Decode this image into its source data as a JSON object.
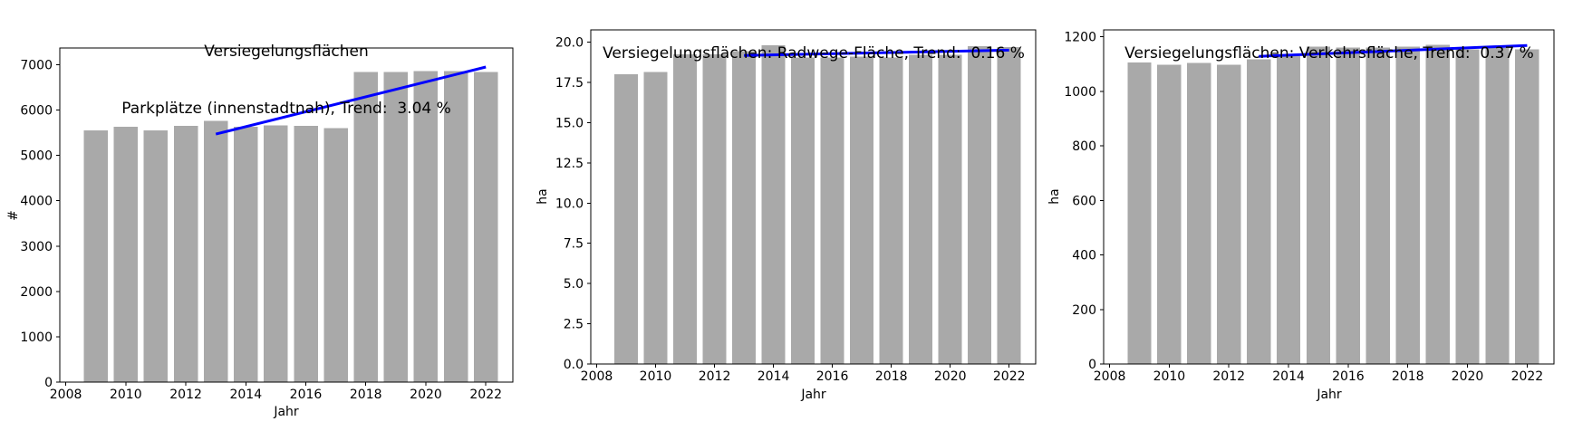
{
  "figure": {
    "background": "#ffffff",
    "bar_color": "#a9a9a9",
    "trend_color": "#0000ff",
    "axis_color": "#000000",
    "text_color": "#000000"
  },
  "chart_data": [
    {
      "type": "bar",
      "title_lines": [
        "Versiegelungsflächen",
        "Parkplätze (innenstadtnah), Trend:  3.04 %"
      ],
      "trend_value_label": "3.04 %",
      "xlabel": "Jahr",
      "ylabel": "#",
      "x": [
        2009,
        2010,
        2011,
        2012,
        2013,
        2014,
        2015,
        2016,
        2017,
        2018,
        2019,
        2020,
        2021,
        2022
      ],
      "values": [
        5550,
        5630,
        5550,
        5650,
        5760,
        5630,
        5660,
        5650,
        5600,
        6840,
        6840,
        6860,
        6860,
        6840
      ],
      "bar_width": 0.8,
      "xlim": [
        2007.8,
        2022.9
      ],
      "ylim": [
        0,
        7370
      ],
      "xtick_values": [
        2008,
        2010,
        2012,
        2014,
        2016,
        2018,
        2020,
        2022
      ],
      "xtick_labels": [
        "2008",
        "2010",
        "2012",
        "2014",
        "2016",
        "2018",
        "2020",
        "2022"
      ],
      "ytick_values": [
        0,
        1000,
        2000,
        3000,
        4000,
        5000,
        6000,
        7000
      ],
      "ytick_labels": [
        "0",
        "1000",
        "2000",
        "3000",
        "4000",
        "5000",
        "6000",
        "7000"
      ],
      "grid": false,
      "trend_line": {
        "x": [
          2013,
          2022
        ],
        "y": [
          5470,
          6950
        ]
      }
    },
    {
      "type": "bar",
      "title_lines": [
        "Versiegelungsflächen: Radwege-Fläche, Trend:  0.16 %"
      ],
      "trend_value_label": "0.16 %",
      "xlabel": "Jahr",
      "ylabel": "ha",
      "x": [
        2009,
        2010,
        2011,
        2012,
        2013,
        2014,
        2015,
        2016,
        2017,
        2018,
        2019,
        2020,
        2021,
        2022
      ],
      "values": [
        18.0,
        18.15,
        19.25,
        19.25,
        19.45,
        19.8,
        19.05,
        19.05,
        19.1,
        19.05,
        19.2,
        19.2,
        19.75,
        19.7
      ],
      "bar_width": 0.8,
      "xlim": [
        2007.8,
        2022.9
      ],
      "ylim": [
        0,
        20.76
      ],
      "xtick_values": [
        2008,
        2010,
        2012,
        2014,
        2016,
        2018,
        2020,
        2022
      ],
      "xtick_labels": [
        "2008",
        "2010",
        "2012",
        "2014",
        "2016",
        "2018",
        "2020",
        "2022"
      ],
      "ytick_values": [
        0,
        2.5,
        5,
        7.5,
        10,
        12.5,
        15,
        17.5,
        20
      ],
      "ytick_labels": [
        "0.0",
        "2.5",
        "5.0",
        "7.5",
        "10.0",
        "12.5",
        "15.0",
        "17.5",
        "20.0"
      ],
      "grid": false,
      "trend_line": {
        "x": [
          2013,
          2022
        ],
        "y": [
          19.17,
          19.5
        ]
      }
    },
    {
      "type": "bar",
      "title_lines": [
        "Versiegelungsflächen: Verkehrsfläche, Trend:  0.37 %"
      ],
      "trend_value_label": "0.37 %",
      "xlabel": "Jahr",
      "ylabel": "ha",
      "x": [
        2009,
        2010,
        2011,
        2012,
        2013,
        2014,
        2015,
        2016,
        2017,
        2018,
        2019,
        2020,
        2021,
        2022
      ],
      "values": [
        1106,
        1098,
        1103,
        1098,
        1117,
        1128,
        1164,
        1160,
        1160,
        1164,
        1170,
        1153,
        1158,
        1153
      ],
      "bar_width": 0.8,
      "xlim": [
        2007.8,
        2022.9
      ],
      "ylim": [
        0,
        1225
      ],
      "xtick_values": [
        2008,
        2010,
        2012,
        2014,
        2016,
        2018,
        2020,
        2022
      ],
      "xtick_labels": [
        "2008",
        "2010",
        "2012",
        "2014",
        "2016",
        "2018",
        "2020",
        "2022"
      ],
      "ytick_values": [
        0,
        200,
        400,
        600,
        800,
        1000,
        1200
      ],
      "ytick_labels": [
        "0",
        "200",
        "400",
        "600",
        "800",
        "1000",
        "1200"
      ],
      "grid": false,
      "trend_line": {
        "x": [
          2013,
          2022
        ],
        "y": [
          1128,
          1168
        ]
      }
    }
  ]
}
